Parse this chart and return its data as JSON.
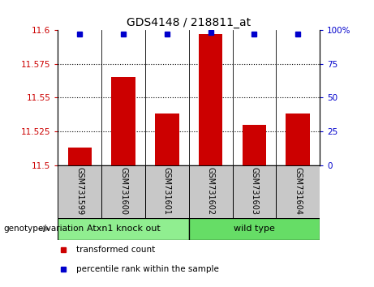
{
  "title": "GDS4148 / 218811_at",
  "samples": [
    "GSM731599",
    "GSM731600",
    "GSM731601",
    "GSM731602",
    "GSM731603",
    "GSM731604"
  ],
  "bar_values": [
    11.513,
    11.565,
    11.538,
    11.597,
    11.53,
    11.538
  ],
  "percentile_values": [
    97,
    97,
    97,
    98,
    97,
    97
  ],
  "y_min": 11.5,
  "y_max": 11.6,
  "y_ticks": [
    11.5,
    11.525,
    11.55,
    11.575,
    11.6
  ],
  "y_tick_labels": [
    "11.5",
    "11.525",
    "11.55",
    "11.575",
    "11.6"
  ],
  "y2_ticks": [
    0,
    25,
    50,
    75,
    100
  ],
  "y2_tick_labels": [
    "0",
    "25",
    "50",
    "75",
    "100%"
  ],
  "bar_color": "#cc0000",
  "dot_color": "#0000cc",
  "groups": [
    {
      "label": "Atxn1 knock out",
      "indices": [
        0,
        1,
        2
      ],
      "color": "#90EE90"
    },
    {
      "label": "wild type",
      "indices": [
        3,
        4,
        5
      ],
      "color": "#66dd66"
    }
  ],
  "group_label": "genotype/variation",
  "legend_items": [
    {
      "color": "#cc0000",
      "label": "transformed count"
    },
    {
      "color": "#0000cc",
      "label": "percentile rank within the sample"
    }
  ],
  "bg_color": "#ffffff",
  "label_bg": "#c8c8c8",
  "bar_width": 0.55
}
